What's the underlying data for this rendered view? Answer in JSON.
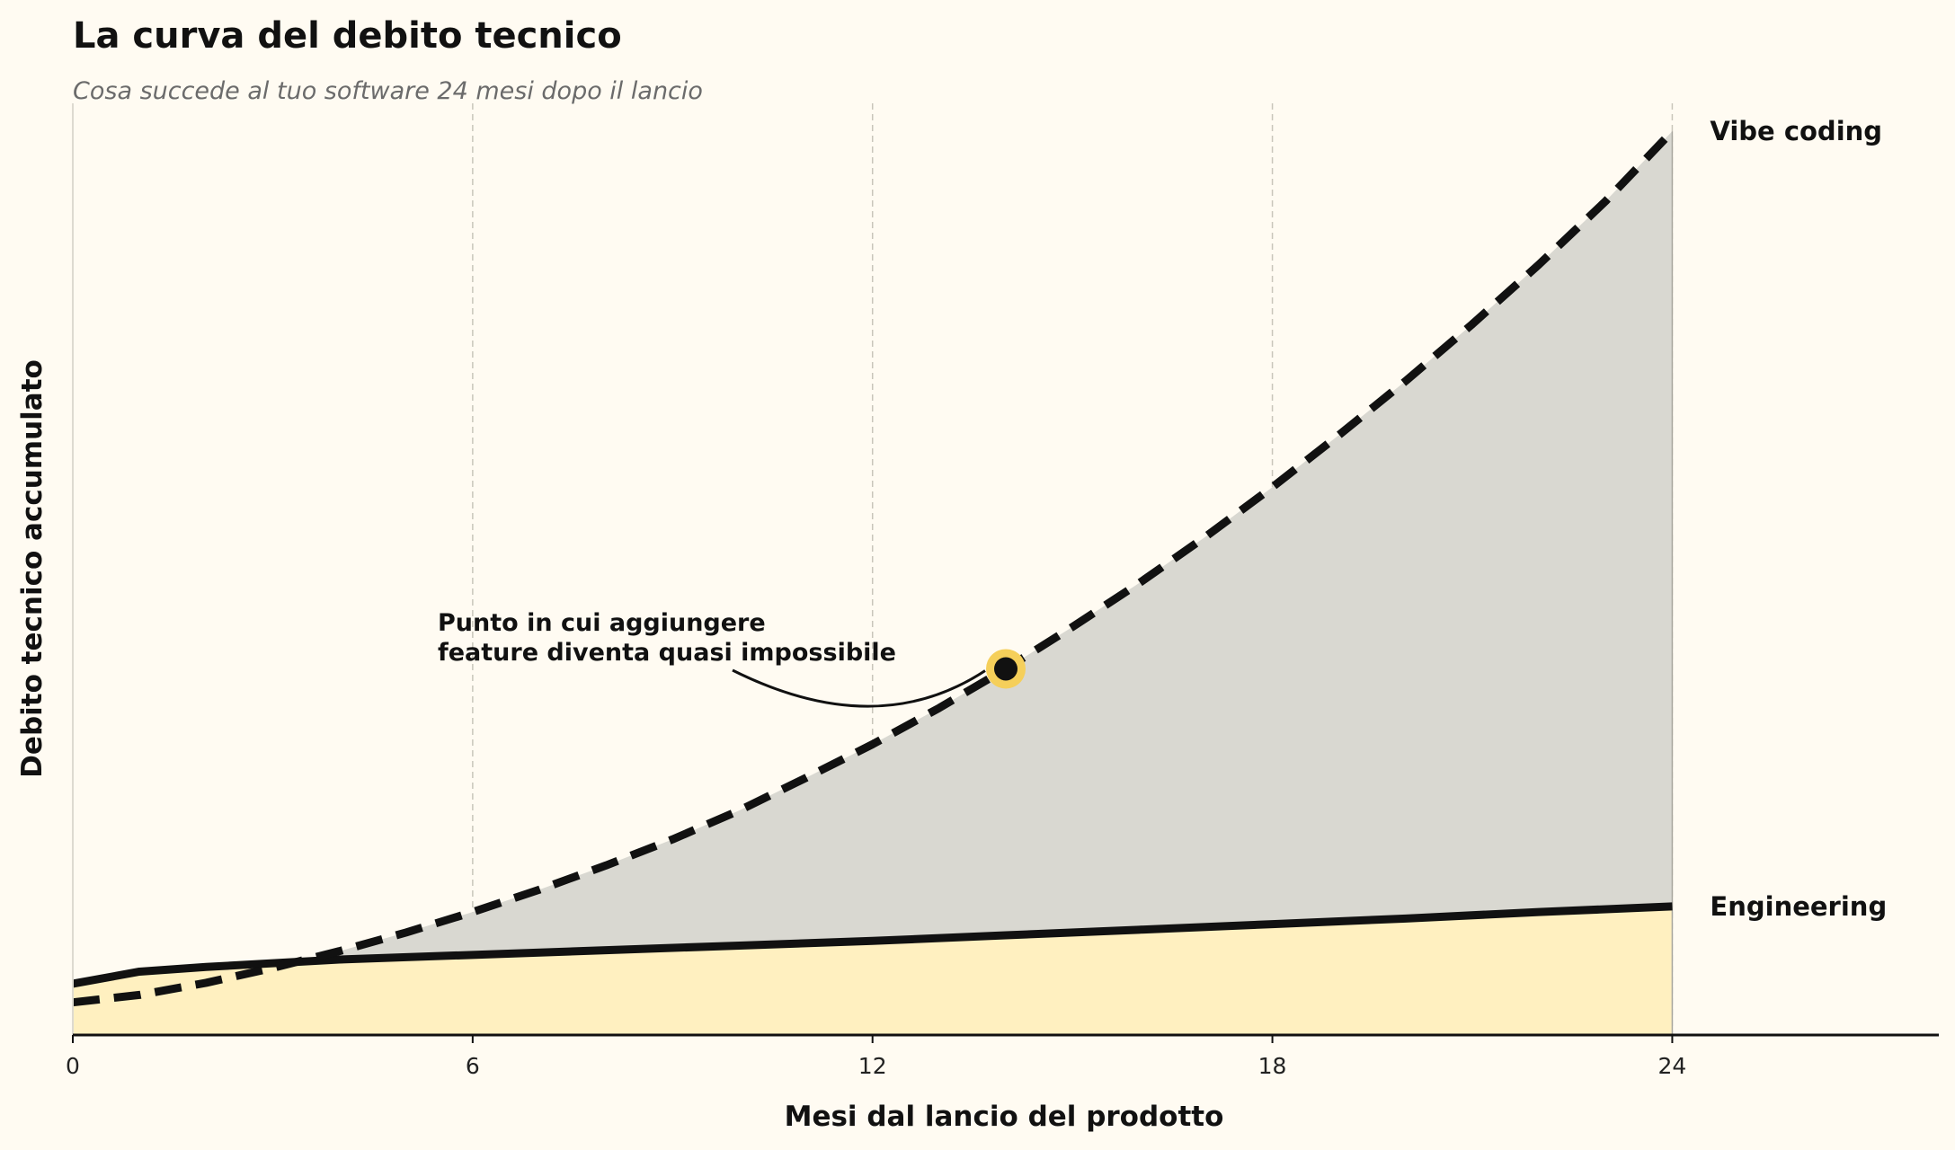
{
  "chart_data": {
    "type": "area",
    "title": "La curva del debito tecnico",
    "subtitle": "Cosa succede al tuo software 24 mesi dopo il lancio",
    "xlabel": "Mesi dal lancio del prodotto",
    "ylabel": "Debito tecnico accumulato",
    "xlim": [
      0,
      28
    ],
    "ylim": [
      0,
      100
    ],
    "x_ticks": [
      0,
      6,
      12,
      18,
      24
    ],
    "y_ticks_shown": false,
    "grid": "vertical-dashed",
    "series": [
      {
        "name": "Vibe coding",
        "style": "dashed",
        "fill": "#d9d8d1",
        "x": [
          0,
          1,
          2,
          3,
          4,
          5,
          6,
          7,
          8,
          9,
          10,
          11,
          12,
          13,
          14,
          15,
          16,
          17,
          18,
          19,
          20,
          21,
          22,
          23,
          24
        ],
        "y": [
          3.5,
          4.3,
          5.6,
          7.2,
          9.0,
          11.0,
          13.2,
          15.6,
          18.2,
          21.0,
          24.1,
          27.6,
          31.2,
          35.1,
          39.3,
          43.8,
          48.5,
          53.5,
          58.8,
          64.4,
          70.2,
          76.3,
          82.7,
          89.5,
          97.0
        ]
      },
      {
        "name": "Engineering",
        "style": "solid",
        "fill": "#fff0c0",
        "x": [
          0,
          1,
          2,
          4,
          6,
          8,
          10,
          12,
          14,
          16,
          18,
          20,
          22,
          24
        ],
        "y": [
          5.5,
          6.8,
          7.3,
          8.1,
          8.6,
          9.1,
          9.6,
          10.1,
          10.7,
          11.3,
          11.9,
          12.5,
          13.2,
          13.8
        ]
      }
    ],
    "annotation": {
      "text_line1": "Punto in cui aggiungere",
      "text_line2": "feature diventa quasi impossibile",
      "x": 14,
      "y": 39.3,
      "marker_color": "#f5cf5a"
    }
  }
}
